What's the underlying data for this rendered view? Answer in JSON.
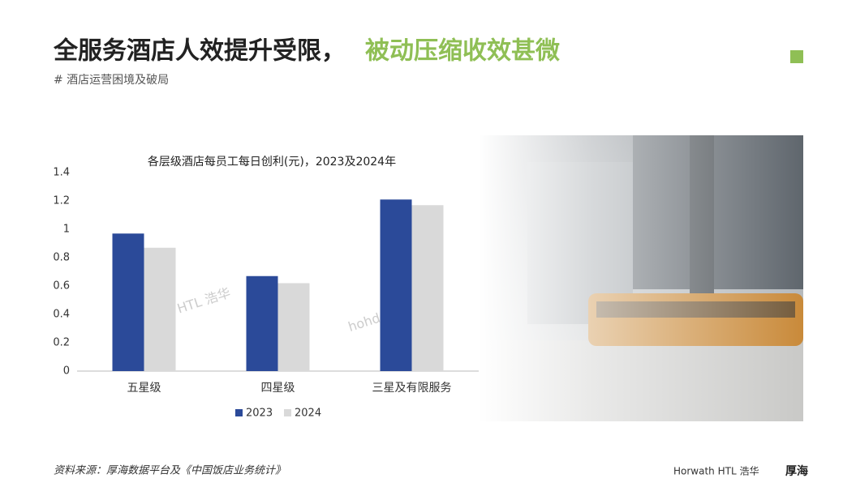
{
  "header": {
    "title_main": "全服务酒店人效提升受限，",
    "title_highlight": "被动压缩收效甚微",
    "subtitle": "# 酒店运营困境及破局"
  },
  "footer": {
    "source": "资料来源：厚海数据平台及《中国饭店业务统计》",
    "logo_horwath": "Horwath HTL 浩华",
    "logo_hohdata": "厚海"
  },
  "watermarks": [
    "Horwath HTL 浩华",
    "hohdata.com"
  ],
  "chart_data": {
    "type": "bar",
    "title": "各层级酒店每员工每日创利(元)，2023及2024年",
    "categories": [
      "五星级",
      "四星级",
      "三星及有限服务"
    ],
    "series": [
      {
        "name": "2023",
        "color": "#2b4a99",
        "values": [
          0.97,
          0.67,
          1.21
        ]
      },
      {
        "name": "2024",
        "color": "#d9d9d9",
        "values": [
          0.87,
          0.62,
          1.17
        ]
      }
    ],
    "ylim": [
      0,
      1.4
    ],
    "yticks": [
      0,
      0.2,
      0.4,
      0.6,
      0.8,
      1,
      1.2,
      1.4
    ],
    "grid": false,
    "legend": "bottom"
  }
}
